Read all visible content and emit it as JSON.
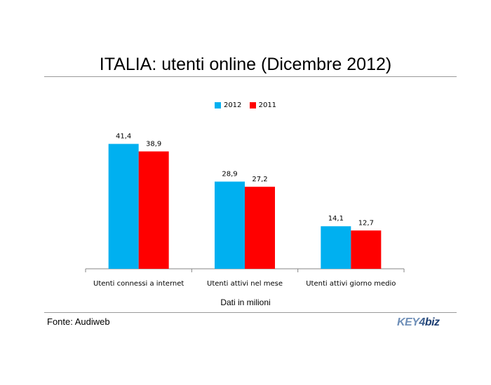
{
  "title": "ITALIA: utenti online (Dicembre 2012)",
  "source": "Fonte: Audiweb",
  "logo": {
    "key": "KEY",
    "num": "4",
    "biz": "biz"
  },
  "chart_data": {
    "type": "bar",
    "title": "ITALIA: utenti online (Dicembre 2012)",
    "xlabel": "Dati in milioni",
    "ylabel": "",
    "categories": [
      "Utenti connessi a internet",
      "Utenti attivi nel mese",
      "Utenti attivi giorno medio"
    ],
    "series": [
      {
        "name": "2012",
        "values": [
          41.4,
          28.9,
          14.1
        ],
        "labels": [
          "41,4",
          "28,9",
          "14,1"
        ],
        "color": "#00b0f0"
      },
      {
        "name": "2011",
        "values": [
          38.9,
          27.2,
          12.7
        ],
        "labels": [
          "38,9",
          "27,2",
          "12,7"
        ],
        "color": "#ff0000"
      }
    ],
    "ylim": [
      0,
      45
    ],
    "grid": false,
    "legend": "top-center"
  }
}
